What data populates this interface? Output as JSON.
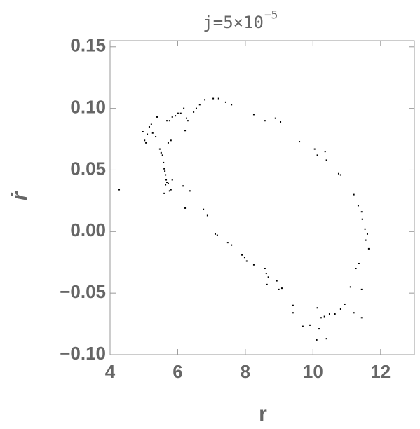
{
  "chart_data": {
    "type": "scatter",
    "title": "j=5×10",
    "title_exponent": "−5",
    "x_label": "r",
    "y_label": "ṙ",
    "color": "#000000",
    "xlim": [
      4,
      13
    ],
    "ylim": [
      -0.1,
      0.155
    ],
    "xticks": [
      4,
      6,
      8,
      10,
      12
    ],
    "yticks": [
      {
        "value": -0.1,
        "label": "−0.10"
      },
      {
        "value": -0.05,
        "label": "−0.05"
      },
      {
        "value": 0,
        "label": "0.00"
      },
      0.05,
      {
        "value": 0.1,
        "label": "0.10"
      },
      0.15
    ],
    "x": [
      4.27,
      4.97,
      5.02,
      5.06,
      5.1,
      5.16,
      5.22,
      5.26,
      5.35,
      5.39,
      5.47,
      5.51,
      5.55,
      5.58,
      5.6,
      5.62,
      5.64,
      5.66,
      5.68,
      5.64,
      5.72,
      5.76,
      5.8,
      5.6,
      5.84,
      5.72,
      5.8,
      5.68,
      5.76,
      5.84,
      5.93,
      6.01,
      6.09,
      6.18,
      6.26,
      6.22,
      6.3,
      6.16,
      6.22,
      6.36,
      6.47,
      6.55,
      6.65,
      6.8,
      7.05,
      7.21,
      7.42,
      7.59,
      6.76,
      6.88,
      7.11,
      7.17,
      7.48,
      7.59,
      7.9,
      7.98,
      8.04,
      8.25,
      8.58,
      8.62,
      8.68,
      8.64,
      8.93,
      8.99,
      9.08,
      8.25,
      8.58,
      8.89,
      9.04,
      9.6,
      10.05,
      10.13,
      10.36,
      10.4,
      10.76,
      10.82,
      11.21,
      11.34,
      11.44,
      11.46,
      11.54,
      11.61,
      11.56,
      11.65,
      11.36,
      11.27,
      11.11,
      11.44,
      9.41,
      9.41,
      9.7,
      9.91,
      10.13,
      10.24,
      10.34,
      10.49,
      10.65,
      10.82,
      10.94,
      11.21,
      11.44,
      10.18,
      10.11,
      10.4
    ],
    "values": [
      0.034,
      0.081,
      0.074,
      0.072,
      0.079,
      0.085,
      0.087,
      0.08,
      0.077,
      0.093,
      0.067,
      0.064,
      0.062,
      0.056,
      0.051,
      0.049,
      0.046,
      0.042,
      0.04,
      0.038,
      0.039,
      0.033,
      0.034,
      0.031,
      0.042,
      0.072,
      0.074,
      0.09,
      0.09,
      0.093,
      0.094,
      0.096,
      0.096,
      0.1,
      0.092,
      0.082,
      0.09,
      0.037,
      0.019,
      0.033,
      0.097,
      0.1,
      0.103,
      0.107,
      0.108,
      0.108,
      0.105,
      0.103,
      0.018,
      0.013,
      -0.002,
      -0.003,
      -0.009,
      -0.011,
      -0.019,
      -0.021,
      -0.024,
      -0.027,
      -0.03,
      -0.034,
      -0.037,
      -0.043,
      -0.04,
      -0.047,
      -0.046,
      0.095,
      0.09,
      0.092,
      0.089,
      0.073,
      0.067,
      0.062,
      0.065,
      0.058,
      0.047,
      0.046,
      0.03,
      0.021,
      0.016,
      0.01,
      0.002,
      -0.002,
      -0.007,
      -0.014,
      -0.026,
      -0.03,
      -0.045,
      -0.047,
      -0.06,
      -0.066,
      -0.077,
      -0.076,
      -0.062,
      -0.07,
      -0.069,
      -0.067,
      -0.067,
      -0.063,
      -0.059,
      -0.066,
      -0.07,
      -0.079,
      -0.088,
      -0.087
    ]
  }
}
